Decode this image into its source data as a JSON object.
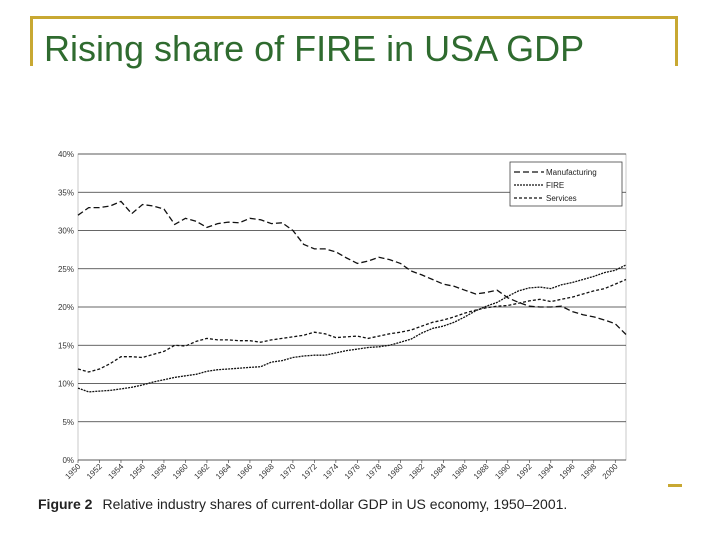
{
  "slide": {
    "title": "Rising share of FIRE in USA GDP",
    "accent_color": "#c8a832",
    "title_color": "#2f6b2f"
  },
  "figure": {
    "label": "Figure 2",
    "caption": "Relative industry shares of current-dollar GDP in US economy, 1950–2001."
  },
  "chart_data": {
    "type": "line",
    "title": "",
    "xlabel": "",
    "ylabel": "",
    "xlim": [
      1950,
      2001
    ],
    "ylim": [
      0,
      40
    ],
    "grid": true,
    "legend_position": "top-right",
    "y_ticks": [
      "0%",
      "5%",
      "10%",
      "15%",
      "20%",
      "25%",
      "30%",
      "35%",
      "40%"
    ],
    "x_tick_labels": [
      "1950",
      "1952",
      "1954",
      "1956",
      "1958",
      "1960",
      "1962",
      "1964",
      "1966",
      "1968",
      "1970",
      "1972",
      "1974",
      "1976",
      "1978",
      "1980",
      "1982",
      "1984",
      "1986",
      "1988",
      "1990",
      "1992",
      "1994",
      "1996",
      "1998",
      "2000"
    ],
    "x": [
      1950,
      1951,
      1952,
      1953,
      1954,
      1955,
      1956,
      1957,
      1958,
      1959,
      1960,
      1961,
      1962,
      1963,
      1964,
      1965,
      1966,
      1967,
      1968,
      1969,
      1970,
      1971,
      1972,
      1973,
      1974,
      1975,
      1976,
      1977,
      1978,
      1979,
      1980,
      1981,
      1982,
      1983,
      1984,
      1985,
      1986,
      1987,
      1988,
      1989,
      1990,
      1991,
      1992,
      1993,
      1994,
      1995,
      1996,
      1997,
      1998,
      1999,
      2000,
      2001
    ],
    "series": [
      {
        "name": "Manufacturing",
        "dash": "long",
        "values": [
          32.0,
          33.0,
          33.0,
          33.2,
          33.8,
          32.2,
          33.4,
          33.2,
          32.8,
          30.8,
          31.6,
          31.2,
          30.4,
          30.9,
          31.1,
          31.0,
          31.6,
          31.4,
          30.9,
          31.0,
          30.0,
          28.2,
          27.6,
          27.6,
          27.2,
          26.4,
          25.7,
          26.0,
          26.5,
          26.2,
          25.7,
          24.7,
          24.2,
          23.6,
          23.0,
          22.7,
          22.2,
          21.7,
          21.9,
          22.2,
          21.2,
          20.6,
          20.1,
          20.0,
          20.0,
          20.1,
          19.4,
          19.0,
          18.7,
          18.3,
          17.8,
          16.4
        ]
      },
      {
        "name": "FIRE",
        "dash": "dense",
        "values": [
          9.4,
          8.9,
          9.0,
          9.1,
          9.3,
          9.5,
          9.8,
          10.2,
          10.5,
          10.8,
          11.0,
          11.2,
          11.6,
          11.8,
          11.9,
          12.0,
          12.1,
          12.2,
          12.8,
          13.0,
          13.4,
          13.6,
          13.7,
          13.7,
          14.0,
          14.3,
          14.5,
          14.7,
          14.8,
          15.0,
          15.4,
          15.8,
          16.6,
          17.2,
          17.5,
          18.0,
          18.7,
          19.5,
          20.1,
          20.6,
          21.4,
          22.1,
          22.5,
          22.6,
          22.4,
          22.9,
          23.2,
          23.6,
          24.0,
          24.5,
          24.8,
          25.5
        ]
      },
      {
        "name": "Services",
        "dash": "short",
        "values": [
          11.9,
          11.5,
          11.9,
          12.6,
          13.5,
          13.5,
          13.4,
          13.8,
          14.2,
          15.0,
          14.9,
          15.5,
          15.9,
          15.7,
          15.7,
          15.6,
          15.6,
          15.4,
          15.7,
          15.9,
          16.1,
          16.3,
          16.7,
          16.5,
          16.0,
          16.1,
          16.2,
          15.9,
          16.2,
          16.5,
          16.7,
          17.0,
          17.5,
          18.0,
          18.3,
          18.7,
          19.2,
          19.6,
          19.9,
          20.1,
          20.2,
          20.5,
          20.8,
          21.0,
          20.7,
          21.0,
          21.3,
          21.7,
          22.1,
          22.4,
          23.0,
          23.6
        ]
      }
    ]
  }
}
